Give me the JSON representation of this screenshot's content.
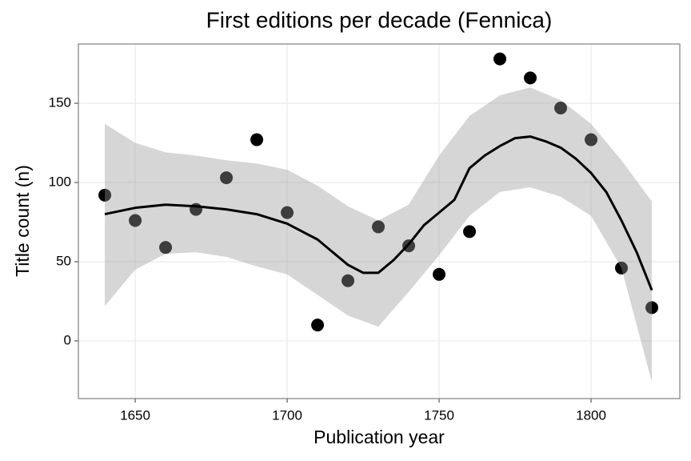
{
  "chart_data": {
    "type": "scatter",
    "title": "First editions per decade (Fennica)",
    "x_label": "Publication year",
    "y_label": "Title count (n)",
    "x": [
      1640,
      1650,
      1660,
      1670,
      1680,
      1690,
      1700,
      1710,
      1720,
      1730,
      1740,
      1750,
      1760,
      1770,
      1780,
      1790,
      1800,
      1810,
      1820
    ],
    "values": [
      92,
      76,
      59,
      83,
      103,
      127,
      81,
      10,
      38,
      72,
      60,
      42,
      69,
      178,
      166,
      147,
      127,
      46,
      21
    ],
    "color": "#000000",
    "smooth": {
      "color": "#000000",
      "x": [
        1640,
        1650,
        1660,
        1670,
        1680,
        1690,
        1700,
        1710,
        1715,
        1720,
        1725,
        1730,
        1735,
        1740,
        1745,
        1750,
        1755,
        1760,
        1765,
        1770,
        1775,
        1780,
        1785,
        1790,
        1795,
        1800,
        1805,
        1810,
        1815,
        1820
      ],
      "values": [
        80,
        84,
        86,
        85,
        83,
        80,
        74,
        64,
        56,
        48,
        43,
        43,
        51,
        61,
        73,
        81,
        89,
        109,
        117,
        123,
        128,
        129,
        126,
        122,
        115,
        106,
        94,
        76,
        56,
        32
      ]
    },
    "band": {
      "color": "#999999",
      "x": [
        1640,
        1650,
        1660,
        1670,
        1680,
        1690,
        1700,
        1710,
        1720,
        1730,
        1740,
        1750,
        1760,
        1770,
        1780,
        1790,
        1800,
        1810,
        1820
      ],
      "upper": [
        137,
        125,
        119,
        117,
        114,
        112,
        108,
        98,
        85,
        76,
        86,
        117,
        142,
        155,
        160,
        152,
        137,
        114,
        88
      ],
      "lower": [
        22,
        45,
        55,
        56,
        53,
        47,
        42,
        29,
        16,
        9,
        31,
        54,
        79,
        94,
        97,
        91,
        79,
        46,
        -26
      ]
    },
    "xlim": [
      1631.3,
      1829.2
    ],
    "ylim": [
      -36.4,
      187.4
    ],
    "xticks": [
      1650,
      1700,
      1750,
      1800
    ],
    "yticks": [
      0,
      50,
      100,
      150
    ],
    "grid": true
  }
}
